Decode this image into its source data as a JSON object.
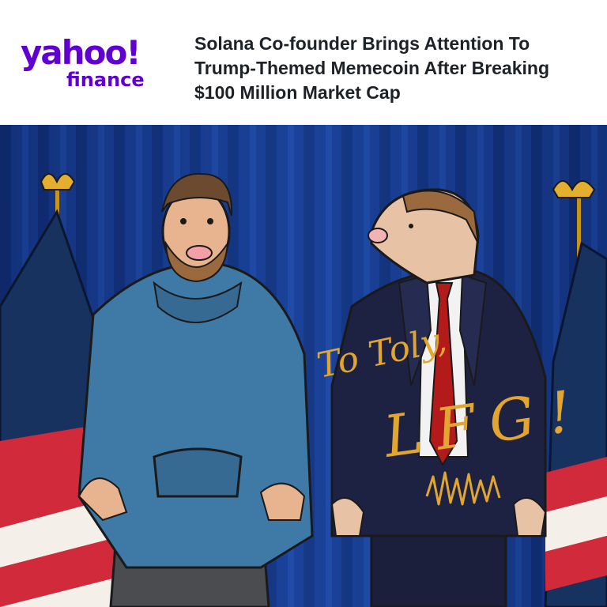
{
  "brand": {
    "name_primary": "yahoo!",
    "name_secondary": "finance",
    "color": "#6001d2"
  },
  "article": {
    "headline": "Solana Co-founder Brings Attention To Trump-Themed Memecoin After Breaking $100 Million Market Cap"
  },
  "artwork": {
    "inscription_line1": "To Toly,",
    "inscription_line2": "LFG!",
    "colors": {
      "curtain": "#12327a",
      "flag_blue": "#16315e",
      "flag_red": "#d12a3a",
      "hoodie": "#3f79a6",
      "suit": "#1e2242",
      "tie": "#b31b1b",
      "ink": "#e2a530"
    }
  }
}
